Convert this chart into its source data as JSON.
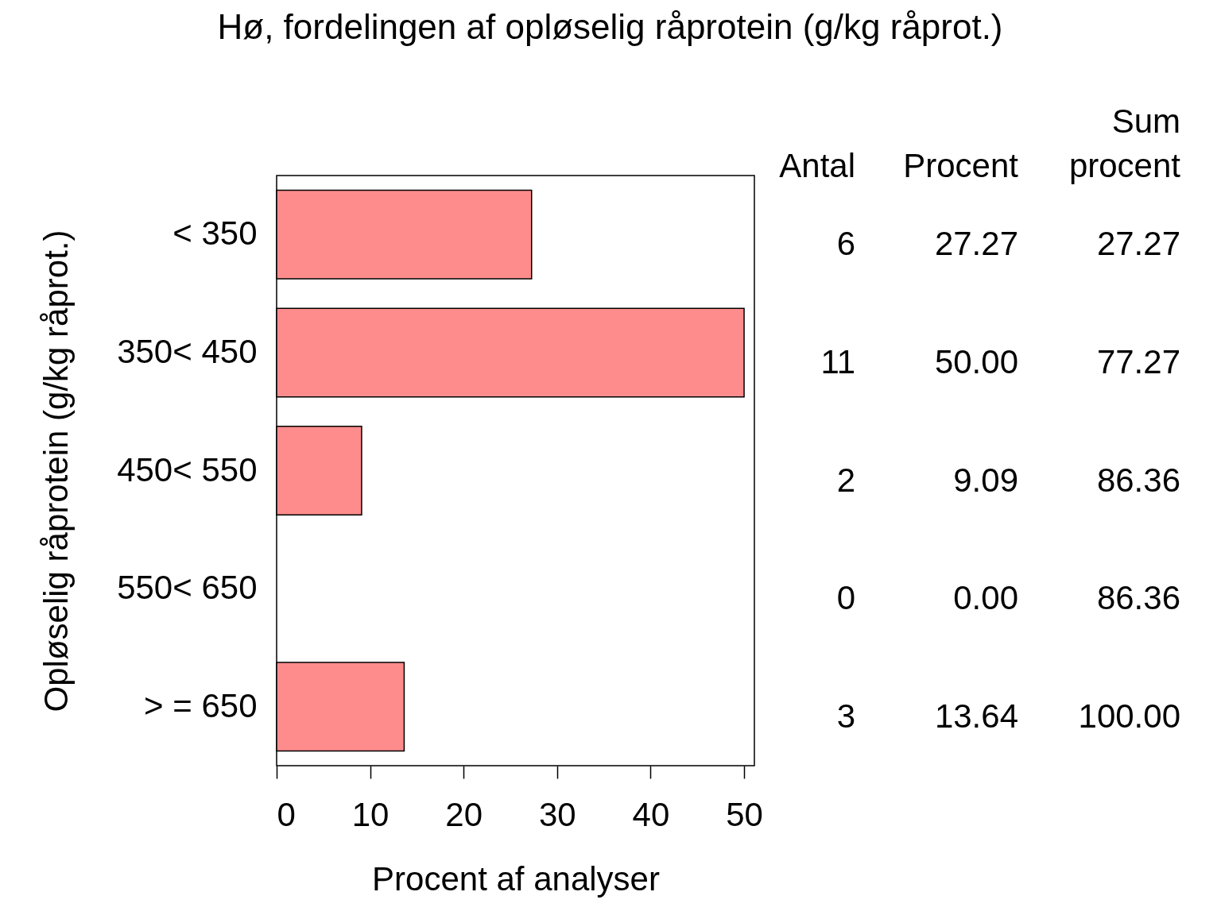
{
  "chart_data": {
    "type": "bar",
    "orientation": "horizontal",
    "title": "Hø, fordelingen af opløselig råprotein (g/kg råprot.)",
    "xlabel": "Procent af analyser",
    "ylabel": "Opløselig råprotein (g/kg råprot.)",
    "categories": [
      "< 350",
      "350< 450",
      "450< 550",
      "550< 650",
      "> = 650"
    ],
    "values": [
      27.27,
      50.0,
      9.09,
      0.0,
      13.64
    ],
    "color": "#ff8c8c",
    "xlim": [
      0,
      51.1
    ],
    "xticks": [
      0,
      10,
      20,
      30,
      40,
      50
    ],
    "grid": false,
    "value_labels": [
      "27.27",
      "50.00",
      "9.09",
      "0.00",
      "13.64"
    ],
    "annotations": [
      "Antal",
      "Procent",
      "Sum procent",
      "6",
      "11",
      "2",
      "0",
      "3",
      "27.27",
      "77.27",
      "86.36",
      "86.36",
      "100.00"
    ]
  }
}
